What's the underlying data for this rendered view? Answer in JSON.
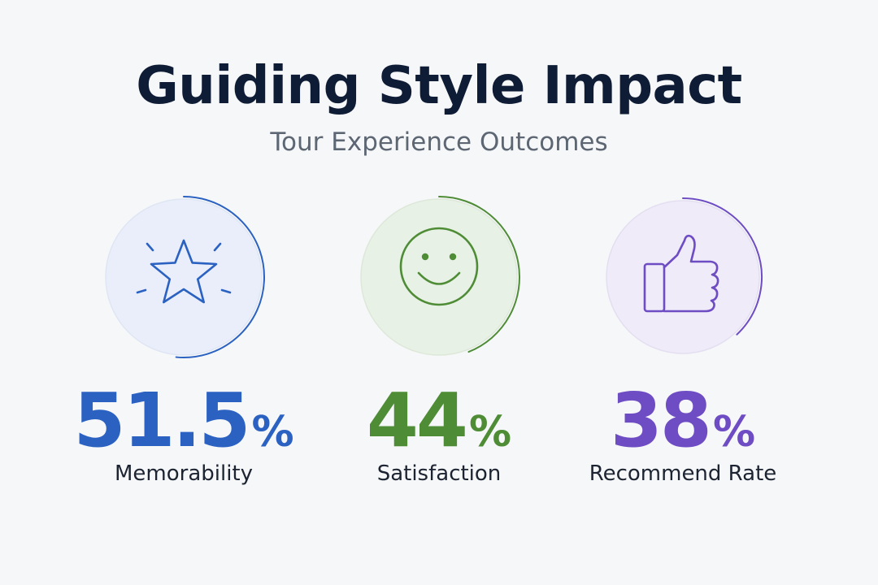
{
  "header": {
    "title": "Guiding Style Impact",
    "subtitle": "Tour Experience Outcomes"
  },
  "chart_data": {
    "type": "kpi",
    "title": "Guiding Style Impact",
    "subtitle": "Tour Experience Outcomes",
    "unit": "%",
    "metrics": [
      {
        "label": "Memorability",
        "value": 51.5,
        "display": "51.5",
        "unit": "%",
        "color": "#2b62c2",
        "tint": "#e9eefa",
        "icon": "star-icon"
      },
      {
        "label": "Satisfaction",
        "value": 44,
        "display": "44",
        "unit": "%",
        "color": "#4e8c36",
        "tint": "#e8f1e5",
        "icon": "smiley-icon"
      },
      {
        "label": "Recommend Rate",
        "value": 38,
        "display": "38",
        "unit": "%",
        "color": "#6e4cc3",
        "tint": "#efebf8",
        "icon": "thumbs-up-icon"
      }
    ]
  }
}
